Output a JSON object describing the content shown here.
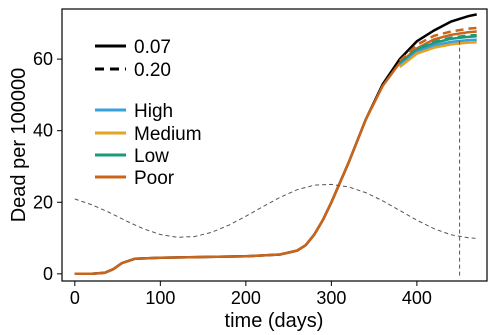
{
  "chart_data": {
    "type": "line",
    "xlabel": "time (days)",
    "ylabel": "Dead per 100000",
    "xlim": [
      -15,
      482
    ],
    "ylim": [
      -2,
      74
    ],
    "x_ticks": [
      0,
      100,
      200,
      300,
      400
    ],
    "y_ticks": [
      0,
      20,
      40,
      60
    ],
    "x_tick_labels": [
      "0",
      "100",
      "200",
      "300",
      "400"
    ],
    "y_tick_labels": [
      "0",
      "20",
      "40",
      "60"
    ],
    "grid": false,
    "legend_placement": "top-left",
    "linestyle_legend": [
      {
        "label": "0.07",
        "style": "solid"
      },
      {
        "label": "0.20",
        "style": "dashed"
      }
    ],
    "color_legend": [
      {
        "label": "High",
        "color": "#3aa0dc"
      },
      {
        "label": "Medium",
        "color": "#e6a224"
      },
      {
        "label": "Low",
        "color": "#1a9a78"
      },
      {
        "label": "Poor",
        "color": "#c9651a"
      }
    ],
    "series": [
      {
        "color": "#000000",
        "style": "solid",
        "x": [
          0,
          20,
          35,
          45,
          55,
          70,
          100,
          150,
          200,
          240,
          260,
          270,
          280,
          290,
          300,
          320,
          340,
          360,
          380,
          400,
          420,
          440,
          460,
          470
        ],
        "y": [
          0,
          0,
          0.3,
          1.3,
          3,
          4.2,
          4.5,
          4.7,
          4.9,
          5.4,
          6.5,
          8,
          11,
          15,
          20,
          31,
          43,
          53,
          60,
          65,
          68,
          70.5,
          72,
          72.5
        ]
      },
      {
        "color": "#c9651a",
        "style": "solid",
        "x": [
          0,
          20,
          35,
          45,
          55,
          70,
          100,
          150,
          200,
          240,
          260,
          270,
          280,
          290,
          300,
          320,
          340,
          360,
          380,
          400,
          420,
          440,
          460,
          470
        ],
        "y": [
          0,
          0,
          0.3,
          1.3,
          3,
          4.2,
          4.5,
          4.7,
          4.9,
          5.4,
          6.5,
          8,
          11,
          15,
          20,
          31,
          43,
          52.5,
          59,
          63,
          65.5,
          66.8,
          67.5,
          67.7
        ]
      },
      {
        "color": "#c9651a",
        "style": "dashed",
        "x": [
          380,
          400,
          420,
          440,
          460,
          470
        ],
        "y": [
          59.5,
          64,
          66.5,
          67.7,
          68.5,
          68.7
        ]
      },
      {
        "color": "#1a9a78",
        "style": "solid",
        "x": [
          380,
          400,
          420,
          440,
          460,
          470
        ],
        "y": [
          58.5,
          62.5,
          64.5,
          65.7,
          66.2,
          66.4
        ]
      },
      {
        "color": "#1a9a78",
        "style": "dashed",
        "x": [
          380,
          400,
          420,
          440,
          460,
          470
        ],
        "y": [
          58.8,
          62.8,
          64.8,
          66,
          66.6,
          66.7
        ]
      },
      {
        "color": "#3aa0dc",
        "style": "solid",
        "x": [
          380,
          400,
          420,
          440,
          460,
          470
        ],
        "y": [
          58.2,
          62,
          63.8,
          64.8,
          65.3,
          65.4
        ]
      },
      {
        "color": "#e6a224",
        "style": "solid",
        "x": [
          380,
          400,
          420,
          440,
          460,
          470
        ],
        "y": [
          57.8,
          61.5,
          63.2,
          64.1,
          64.6,
          64.7
        ]
      },
      {
        "color": "#555555",
        "style": "dashed",
        "x": [
          0,
          20,
          40,
          60,
          80,
          100,
          120,
          140,
          160,
          180,
          200,
          220,
          240,
          260,
          280,
          300,
          320,
          340,
          360,
          380,
          400,
          420,
          440,
          460,
          470
        ],
        "y": [
          20.9,
          19.3,
          17.2,
          14.8,
          12.6,
          11,
          10.2,
          10.4,
          11.6,
          13.6,
          16.1,
          18.8,
          21.4,
          23.5,
          24.8,
          25,
          24.3,
          22.7,
          20.4,
          17.7,
          15,
          12.6,
          10.9,
          10.1,
          9.9
        ]
      },
      {
        "color": "#555555",
        "style": "dashed",
        "x": [
          450,
          450
        ],
        "y": [
          -0.5,
          65.5
        ]
      }
    ]
  }
}
